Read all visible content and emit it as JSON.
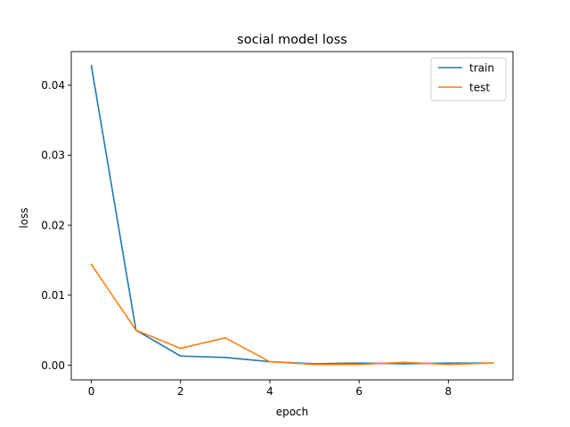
{
  "chart_data": {
    "type": "line",
    "title": "social model loss",
    "xlabel": "epoch",
    "ylabel": "loss",
    "x": [
      0,
      1,
      2,
      3,
      4,
      5,
      6,
      7,
      8,
      9
    ],
    "xlim": [
      -0.45,
      9.45
    ],
    "ylim": [
      -0.0021,
      0.0448
    ],
    "xticks": [
      0,
      2,
      4,
      6,
      8
    ],
    "yticks": [
      0.0,
      0.01,
      0.02,
      0.03,
      0.04
    ],
    "ytick_labels": [
      "0.00",
      "0.01",
      "0.02",
      "0.03",
      "0.04"
    ],
    "grid": false,
    "legend_position": "top-right",
    "series": [
      {
        "name": "train",
        "color": "#1f77b4",
        "values": [
          0.0428,
          0.005,
          0.0013,
          0.0011,
          0.0005,
          0.0002,
          0.0003,
          0.0002,
          0.0003,
          0.0003
        ]
      },
      {
        "name": "test",
        "color": "#ff7f0e",
        "values": [
          0.0144,
          0.005,
          0.0024,
          0.0039,
          0.0005,
          0.0001,
          0.0001,
          0.0004,
          0.0001,
          0.0003
        ]
      }
    ]
  }
}
